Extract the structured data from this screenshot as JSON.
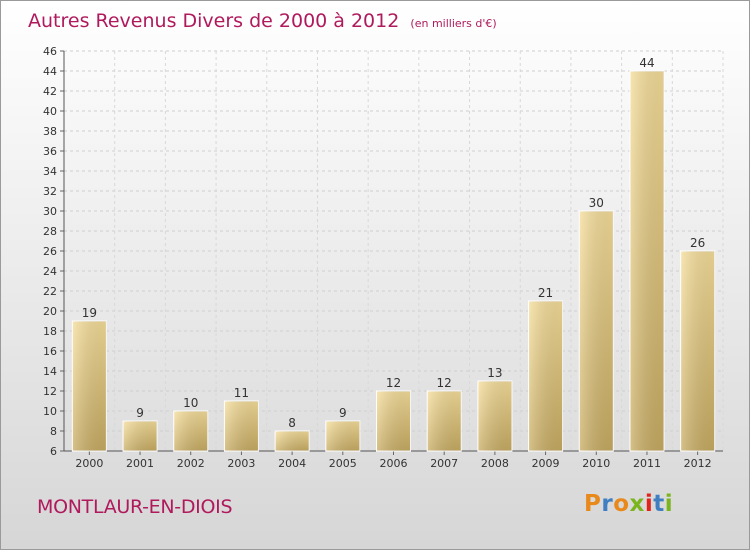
{
  "header": {
    "title": "Autres Revenus Divers de 2000 à 2012",
    "subtitle": "(en milliers d'€)"
  },
  "footer": {
    "commune": "MONTLAUR-EN-DIOIS",
    "logo_letters": [
      "P",
      "r",
      "o",
      "x",
      "i",
      "t",
      "i"
    ],
    "logo_colors": [
      "#e8891b",
      "#3f7fc1",
      "#e8891b",
      "#7ab51d",
      "#e2231a",
      "#3f7fc1",
      "#7ab51d"
    ]
  },
  "chart_data": {
    "type": "bar",
    "title": "Autres Revenus Divers de 2000 à 2012",
    "subtitle": "(en milliers d'€)",
    "xlabel": "",
    "ylabel": "",
    "categories": [
      "2000",
      "2001",
      "2002",
      "2003",
      "2004",
      "2005",
      "2006",
      "2007",
      "2008",
      "2009",
      "2010",
      "2011",
      "2012"
    ],
    "values": [
      19,
      9,
      10,
      11,
      8,
      9,
      12,
      12,
      13,
      21,
      30,
      44,
      26
    ],
    "ylim": [
      6,
      46
    ],
    "yticks": [
      6,
      8,
      10,
      12,
      14,
      16,
      18,
      20,
      22,
      24,
      26,
      28,
      30,
      32,
      34,
      36,
      38,
      40,
      42,
      44,
      46
    ],
    "grid": true,
    "bar_color": "#e9cf87"
  }
}
